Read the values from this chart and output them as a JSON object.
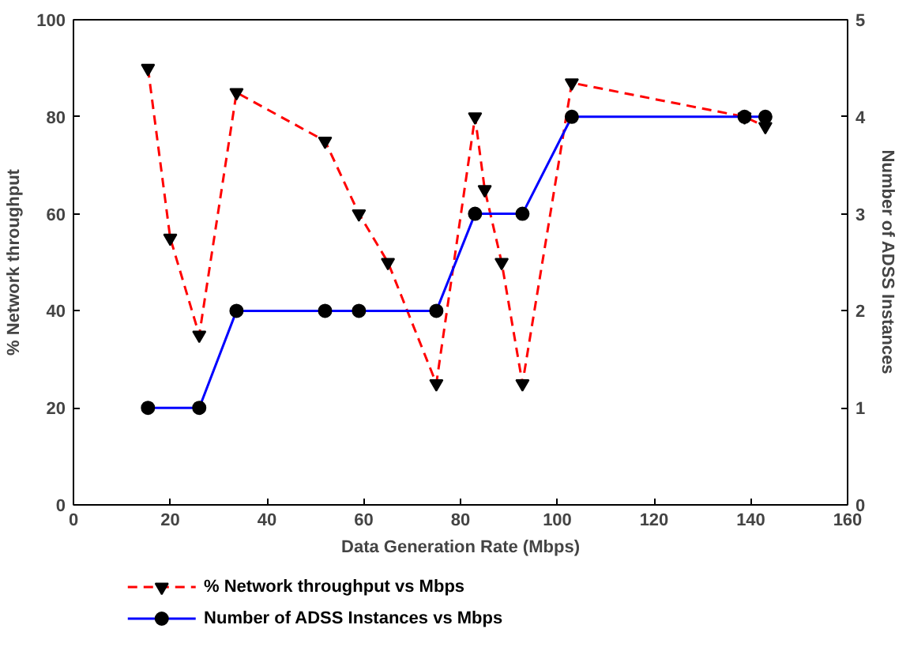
{
  "chart_data": {
    "type": "line",
    "xlabel": "Data Generation Rate (Mbps)",
    "ylabel": "% Network throughput",
    "y2label": "Number of ADSS Instances",
    "xlim": [
      0,
      160
    ],
    "xticks": [
      0,
      20,
      40,
      60,
      80,
      100,
      120,
      140,
      160
    ],
    "ylim": [
      0,
      100
    ],
    "yticks": [
      0,
      20,
      40,
      60,
      80,
      100
    ],
    "y2lim": [
      0,
      5
    ],
    "y2ticks": [
      0,
      1,
      2,
      3,
      4,
      5
    ],
    "grid": false,
    "legend": "bottom",
    "series": [
      {
        "name": "% Network throughput vs Mbps",
        "color": "#ff0000",
        "marker": "triangle",
        "line_style": "dashed",
        "x": [
          15.4,
          20,
          26,
          33.7,
          52,
          59,
          65,
          75,
          83,
          85,
          88.5,
          92.8,
          103,
          138.7,
          143
        ],
        "values": [
          90,
          55,
          35,
          85,
          75,
          60,
          50,
          25,
          80,
          65,
          50,
          25,
          87,
          80,
          78
        ]
      },
      {
        "name": "Number of ADSS Instances  vs Mbps",
        "color": "#0000ff",
        "marker": "circle",
        "line_style": "solid",
        "axis": "y2",
        "x": [
          15.4,
          26,
          33.7,
          52,
          59,
          75,
          83,
          92.8,
          103,
          138.7,
          143
        ],
        "values": [
          1,
          1,
          2,
          2,
          2,
          2,
          3,
          3,
          4,
          4,
          4
        ]
      }
    ]
  }
}
